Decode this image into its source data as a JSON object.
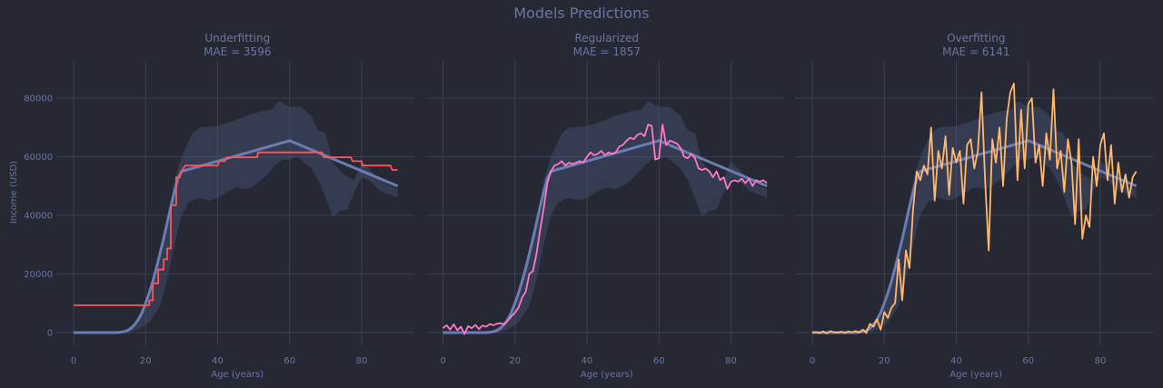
{
  "chart_data": {
    "title": "Models Predictions",
    "type": "line",
    "colors": {
      "background": "#262833",
      "grid": "#3c3f52",
      "text": "#6a75a3",
      "truth": "#6b7db5",
      "band": "#4a5478"
    },
    "xlim": [
      -3,
      94
    ],
    "ylim": [
      -7000,
      92000
    ],
    "xticks": [
      0,
      20,
      40,
      60,
      80
    ],
    "yticks": [
      0,
      20000,
      40000,
      60000,
      80000
    ],
    "xlabel": "Age (years)",
    "ylabel": "Income (USD)",
    "grid": true,
    "truth": [
      [
        0,
        0
      ],
      [
        12,
        0
      ],
      [
        13,
        100
      ],
      [
        14,
        300
      ],
      [
        15,
        700
      ],
      [
        16,
        1500
      ],
      [
        17,
        2800
      ],
      [
        18,
        4500
      ],
      [
        19,
        6800
      ],
      [
        20,
        10000
      ],
      [
        21,
        13500
      ],
      [
        22,
        17500
      ],
      [
        23,
        22000
      ],
      [
        24,
        27000
      ],
      [
        25,
        32000
      ],
      [
        26,
        37500
      ],
      [
        27,
        43000
      ],
      [
        28,
        48000
      ],
      [
        29,
        52500
      ],
      [
        30,
        55000
      ],
      [
        60,
        65500
      ],
      [
        90,
        50000
      ]
    ],
    "band_upper": [
      [
        0,
        0
      ],
      [
        12,
        0
      ],
      [
        14,
        800
      ],
      [
        17,
        3000
      ],
      [
        20,
        8000
      ],
      [
        23,
        20000
      ],
      [
        26,
        38000
      ],
      [
        28,
        52000
      ],
      [
        30,
        60000
      ],
      [
        33,
        68000
      ],
      [
        35,
        70000
      ],
      [
        40,
        70500
      ],
      [
        44,
        72000
      ],
      [
        48,
        74000
      ],
      [
        52,
        75500
      ],
      [
        55,
        76000
      ],
      [
        57,
        79000
      ],
      [
        60,
        77000
      ],
      [
        63,
        77000
      ],
      [
        66,
        74000
      ],
      [
        68,
        69000
      ],
      [
        70,
        68000
      ],
      [
        72,
        58000
      ],
      [
        75,
        54000
      ],
      [
        78,
        52000
      ],
      [
        80,
        58500
      ],
      [
        82,
        56000
      ],
      [
        85,
        52000
      ],
      [
        88,
        50000
      ],
      [
        90,
        49000
      ]
    ],
    "band_lower": [
      [
        0,
        0
      ],
      [
        15,
        0
      ],
      [
        18,
        1000
      ],
      [
        21,
        3500
      ],
      [
        24,
        9000
      ],
      [
        26,
        18000
      ],
      [
        28,
        30000
      ],
      [
        30,
        40000
      ],
      [
        32,
        44500
      ],
      [
        35,
        46000
      ],
      [
        38,
        45000
      ],
      [
        40,
        46000
      ],
      [
        42,
        47500
      ],
      [
        45,
        49500
      ],
      [
        48,
        49000
      ],
      [
        50,
        50000
      ],
      [
        53,
        53000
      ],
      [
        56,
        57000
      ],
      [
        58,
        59000
      ],
      [
        60,
        59000
      ],
      [
        62,
        60000
      ],
      [
        64,
        58000
      ],
      [
        66,
        56000
      ],
      [
        68,
        52000
      ],
      [
        70,
        46000
      ],
      [
        72,
        39500
      ],
      [
        74,
        41500
      ],
      [
        76,
        42000
      ],
      [
        78,
        48000
      ],
      [
        80,
        53000
      ],
      [
        82,
        52000
      ],
      [
        85,
        48500
      ],
      [
        88,
        47000
      ],
      [
        90,
        46000
      ]
    ],
    "panels": [
      {
        "title": "Underfitting",
        "mae_label": "MAE = 3596",
        "mae": 3596,
        "color": "#ff5555",
        "step": true,
        "prediction": [
          [
            0,
            9300
          ],
          [
            21,
            9300
          ],
          [
            21,
            11000
          ],
          [
            22,
            11000
          ],
          [
            22,
            16800
          ],
          [
            23.5,
            16800
          ],
          [
            23.5,
            21500
          ],
          [
            25,
            21500
          ],
          [
            25,
            25000
          ],
          [
            26,
            25000
          ],
          [
            26,
            28700
          ],
          [
            27,
            28700
          ],
          [
            27,
            43500
          ],
          [
            28.5,
            43500
          ],
          [
            28.5,
            53000
          ],
          [
            29.5,
            53000
          ],
          [
            30,
            55000
          ],
          [
            31,
            57000
          ],
          [
            40,
            57000
          ],
          [
            40.5,
            58500
          ],
          [
            42,
            58500
          ],
          [
            42.5,
            59800
          ],
          [
            51,
            59800
          ],
          [
            51.2,
            61500
          ],
          [
            69,
            61500
          ],
          [
            69.5,
            59800
          ],
          [
            77,
            59800
          ],
          [
            77.5,
            58500
          ],
          [
            80,
            58500
          ],
          [
            80.2,
            57000
          ],
          [
            88,
            57000
          ],
          [
            88.5,
            55500
          ],
          [
            90,
            55500
          ]
        ]
      },
      {
        "title": "Regularized",
        "mae_label": "MAE = 1857",
        "mae": 1857,
        "color": "#ff79c6",
        "step": false,
        "prediction": [
          1500,
          2500,
          1000,
          2800,
          800,
          2000,
          -500,
          2200,
          1500,
          2600,
          1200,
          2400,
          2000,
          2900,
          2500,
          3000,
          3200,
          2800,
          4000,
          5500,
          6800,
          8500,
          12000,
          14000,
          20000,
          21000,
          27000,
          35000,
          42500,
          51000,
          55000,
          57000,
          57500,
          58500,
          57000,
          58000,
          57500,
          58000,
          58500,
          58000,
          60000,
          61500,
          60500,
          61000,
          62000,
          60500,
          61500,
          61000,
          61500,
          63500,
          64000,
          65500,
          66500,
          66000,
          67500,
          68000,
          67000,
          71000,
          70500,
          59000,
          59500,
          71000,
          64000,
          65500,
          65000,
          64500,
          63000,
          60000,
          59500,
          61000,
          59500,
          56000,
          55500,
          56000,
          55000,
          53000,
          55000,
          52000,
          53000,
          49000,
          51500,
          52000,
          51500,
          52500,
          51000,
          52500,
          50000,
          52000,
          51500,
          52000,
          51000
        ]
      },
      {
        "title": "Overfitting",
        "mae_label": "MAE = 6141",
        "mae": 6141,
        "color": "#ffb86c",
        "step": false,
        "prediction": [
          0,
          200,
          -200,
          400,
          -300,
          500,
          100,
          0,
          300,
          -100,
          400,
          100,
          500,
          0,
          1000,
          -200,
          3000,
          2000,
          4500,
          1000,
          7000,
          5000,
          8500,
          10000,
          25000,
          11000,
          28000,
          22000,
          42000,
          55000,
          52000,
          57000,
          54000,
          70000,
          45000,
          62000,
          56000,
          67000,
          47000,
          63000,
          58000,
          62000,
          44000,
          64000,
          66000,
          56000,
          62000,
          82000,
          52000,
          28000,
          66000,
          58000,
          70000,
          50000,
          73000,
          82000,
          85000,
          52000,
          76000,
          56000,
          78000,
          80000,
          58000,
          64000,
          50000,
          68000,
          59000,
          83000,
          56000,
          62000,
          48000,
          66000,
          58000,
          37000,
          66000,
          32000,
          40000,
          36000,
          60000,
          50000,
          64000,
          68000,
          52000,
          64000,
          44000,
          58000,
          48000,
          54000,
          46000,
          53000,
          55000
        ]
      }
    ]
  }
}
